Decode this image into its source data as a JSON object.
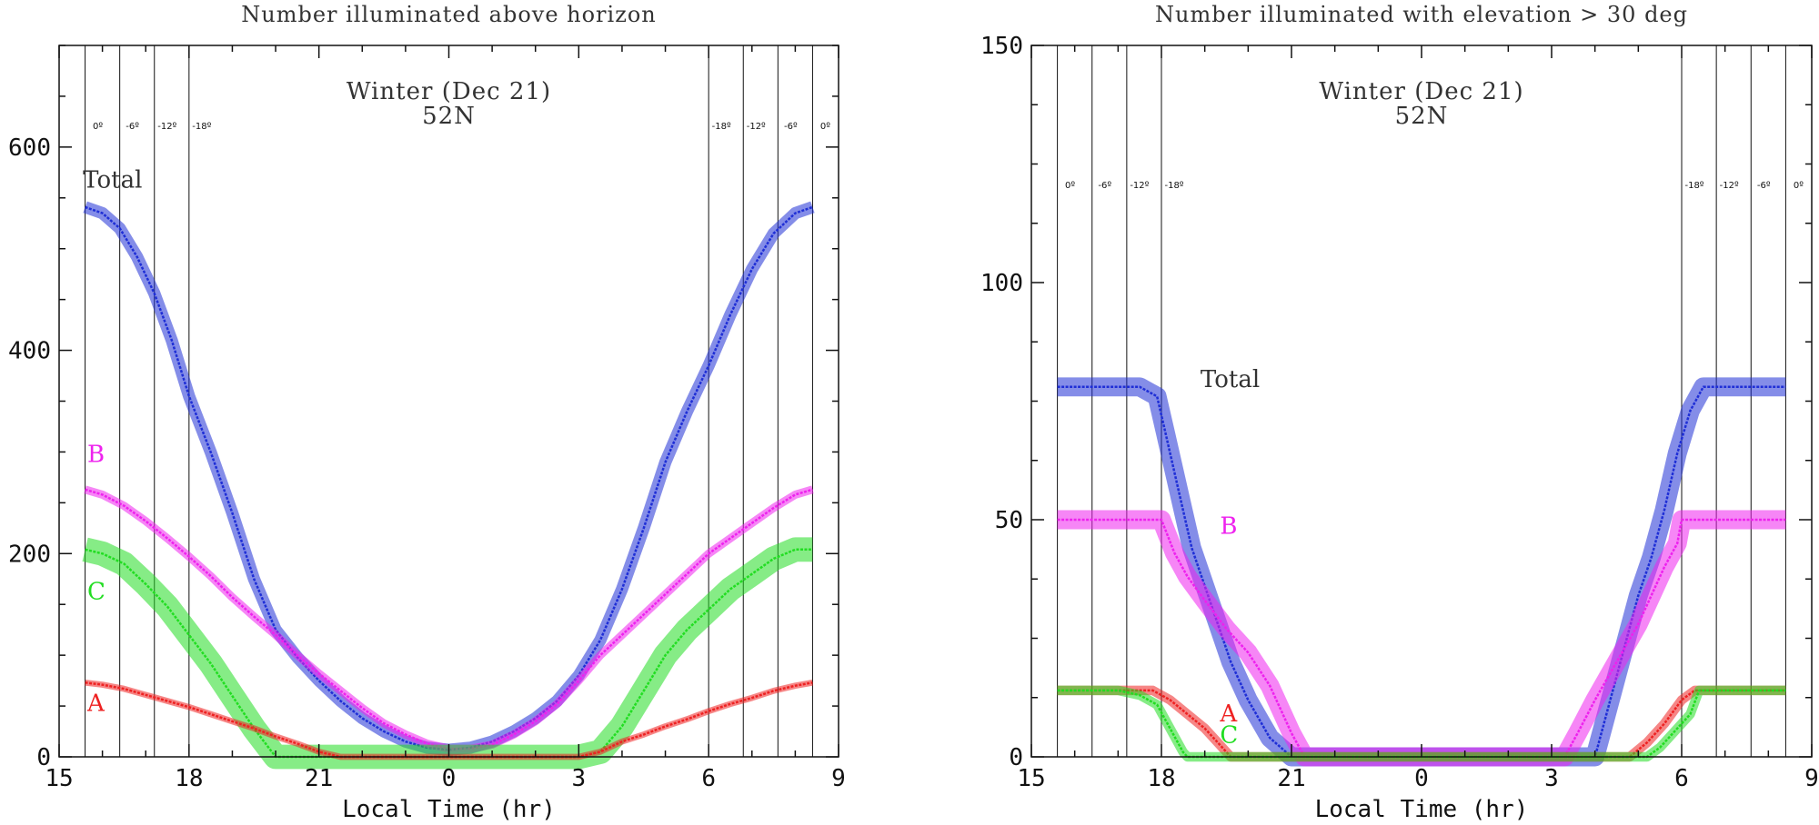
{
  "chart_data": [
    {
      "type": "line",
      "title": "Number illuminated above horizon",
      "annotation_lines": [
        "Winter (Dec 21)",
        "52N"
      ],
      "xlabel": "Local Time (hr)",
      "ylabel": "",
      "xlim": [
        15,
        33
      ],
      "ylim": [
        0,
        700
      ],
      "x_ticks": [
        15,
        18,
        21,
        24,
        27,
        30,
        33
      ],
      "x_tick_labels": [
        "15",
        "18",
        "21",
        "0",
        "3",
        "6",
        "9"
      ],
      "y_ticks": [
        0,
        200,
        400,
        600
      ],
      "y_tick_labels": [
        "0",
        "200",
        "400",
        "600"
      ],
      "twilight_lines": [
        {
          "x": 15.6,
          "label": "0º"
        },
        {
          "x": 16.4,
          "label": "-6º"
        },
        {
          "x": 17.2,
          "label": "-12º"
        },
        {
          "x": 18.0,
          "label": "-18º"
        },
        {
          "x": 30.0,
          "label": "-18º"
        },
        {
          "x": 30.8,
          "label": "-12º"
        },
        {
          "x": 31.6,
          "label": "-6º"
        },
        {
          "x": 32.4,
          "label": "0º"
        }
      ],
      "series": [
        {
          "name": "Total",
          "label_pos": [
            15.55,
            560
          ],
          "color": "#1f2fd6",
          "band": 6,
          "x": [
            15.6,
            16.0,
            16.4,
            16.8,
            17.2,
            17.6,
            18.0,
            18.5,
            19.0,
            19.5,
            20.0,
            20.5,
            21.0,
            21.5,
            22.0,
            22.5,
            23.0,
            23.5,
            24.0,
            24.5,
            25.0,
            25.5,
            26.0,
            26.5,
            27.0,
            27.5,
            28.0,
            28.5,
            29.0,
            29.5,
            30.0,
            30.5,
            31.0,
            31.5,
            32.0,
            32.4
          ],
          "y": [
            541,
            535,
            520,
            492,
            456,
            410,
            355,
            300,
            240,
            175,
            125,
            98,
            75,
            55,
            38,
            25,
            15,
            9,
            7,
            9,
            15,
            25,
            38,
            55,
            80,
            115,
            165,
            225,
            290,
            340,
            385,
            435,
            480,
            515,
            535,
            541
          ]
        },
        {
          "name": "B",
          "label_pos": [
            15.65,
            290
          ],
          "color": "#ee22ee",
          "band": 4,
          "x": [
            15.6,
            16.0,
            16.5,
            17.0,
            17.5,
            18.0,
            18.5,
            19.0,
            19.5,
            20.0,
            20.5,
            21.0,
            21.5,
            22.0,
            22.5,
            23.0,
            23.5,
            24.0,
            24.5,
            25.0,
            25.5,
            26.0,
            26.5,
            27.0,
            27.5,
            28.0,
            28.5,
            29.0,
            29.5,
            30.0,
            30.5,
            31.0,
            31.5,
            32.0,
            32.4
          ],
          "y": [
            263,
            258,
            247,
            232,
            215,
            197,
            178,
            157,
            138,
            120,
            100,
            82,
            65,
            48,
            33,
            22,
            13,
            8,
            8,
            12,
            22,
            35,
            52,
            75,
            100,
            120,
            140,
            160,
            180,
            200,
            215,
            230,
            245,
            258,
            263
          ]
        },
        {
          "name": "C",
          "label_pos": [
            15.65,
            155
          ],
          "color": "#22dd22",
          "band": 12,
          "x": [
            15.6,
            16.0,
            16.5,
            17.0,
            17.5,
            18.0,
            18.5,
            19.0,
            19.5,
            20.0,
            20.5,
            21.0,
            22.0,
            23.0,
            24.0,
            25.0,
            26.0,
            27.0,
            27.5,
            28.0,
            28.5,
            29.0,
            29.5,
            30.0,
            30.5,
            31.0,
            31.5,
            32.0,
            32.4
          ],
          "y": [
            204,
            200,
            190,
            170,
            148,
            120,
            92,
            60,
            28,
            0,
            0,
            0,
            0,
            0,
            0,
            0,
            0,
            0,
            5,
            30,
            65,
            100,
            125,
            145,
            165,
            180,
            195,
            204,
            204
          ]
        },
        {
          "name": "A",
          "label_pos": [
            15.65,
            45
          ],
          "color": "#ee2222",
          "band": 3,
          "x": [
            15.6,
            16.0,
            16.5,
            17.0,
            17.5,
            18.0,
            18.5,
            19.0,
            19.5,
            20.0,
            20.5,
            21.0,
            21.5,
            22.0,
            23.0,
            24.0,
            25.0,
            26.0,
            26.5,
            27.0,
            27.5,
            28.0,
            28.5,
            29.0,
            29.5,
            30.0,
            30.5,
            31.0,
            31.5,
            32.0,
            32.4
          ],
          "y": [
            73,
            71,
            67,
            61,
            55,
            49,
            42,
            35,
            28,
            20,
            13,
            5,
            0,
            0,
            0,
            0,
            0,
            0,
            0,
            0,
            5,
            15,
            22,
            30,
            37,
            45,
            52,
            58,
            65,
            70,
            73
          ]
        }
      ]
    },
    {
      "type": "line",
      "title": "Number illuminated with elevation > 30 deg",
      "annotation_lines": [
        "Winter (Dec 21)",
        "52N"
      ],
      "xlabel": "Local Time (hr)",
      "ylabel": "",
      "xlim": [
        15,
        33
      ],
      "ylim": [
        0,
        150
      ],
      "x_ticks": [
        15,
        18,
        21,
        24,
        27,
        30,
        33
      ],
      "x_tick_labels": [
        "15",
        "18",
        "21",
        "0",
        "3",
        "6",
        "9"
      ],
      "y_ticks": [
        0,
        50,
        100,
        150
      ],
      "y_tick_labels": [
        "0",
        "50",
        "100",
        "150"
      ],
      "twilight_lines": [
        {
          "x": 15.6,
          "label": "0º"
        },
        {
          "x": 16.4,
          "label": "-6º"
        },
        {
          "x": 17.2,
          "label": "-12º"
        },
        {
          "x": 18.0,
          "label": "-18º"
        },
        {
          "x": 30.0,
          "label": "-18º"
        },
        {
          "x": 30.8,
          "label": "-12º"
        },
        {
          "x": 31.6,
          "label": "-6º"
        },
        {
          "x": 32.4,
          "label": "0º"
        }
      ],
      "series": [
        {
          "name": "Total",
          "label_pos": [
            18.9,
            78
          ],
          "color": "#1f2fd6",
          "band": 2,
          "x": [
            15.6,
            16.5,
            17.5,
            17.9,
            18.1,
            18.3,
            18.5,
            18.7,
            19.0,
            19.3,
            19.6,
            20.0,
            20.5,
            21.0,
            22.0,
            24.0,
            26.0,
            28.0,
            29.0,
            29.3,
            29.6,
            29.9,
            30.2,
            30.5,
            31.0,
            32.0,
            32.4
          ],
          "y": [
            78,
            78,
            78,
            76,
            68,
            60,
            52,
            44,
            36,
            28,
            20,
            12,
            4,
            0,
            0,
            0,
            0,
            0,
            34,
            42,
            52,
            64,
            73,
            78,
            78,
            78,
            78
          ]
        },
        {
          "name": "B",
          "label_pos": [
            19.35,
            47
          ],
          "color": "#ee22ee",
          "band": 2,
          "x": [
            15.6,
            16.5,
            17.5,
            18.0,
            18.3,
            18.6,
            19.0,
            19.5,
            20.0,
            20.5,
            21.0,
            21.3,
            22.0,
            24.0,
            26.0,
            27.3,
            27.6,
            28.0,
            28.5,
            29.0,
            29.3,
            29.6,
            29.9,
            30.0,
            31.0,
            32.0,
            32.4
          ],
          "y": [
            50,
            50,
            50,
            50,
            43,
            38,
            33,
            27,
            22,
            15,
            5,
            0,
            0,
            0,
            0,
            0,
            5,
            12,
            20,
            28,
            34,
            40,
            45,
            50,
            50,
            50,
            50
          ]
        },
        {
          "name": "A",
          "label_pos": [
            19.35,
            7.5
          ],
          "color": "#ee2222",
          "band": 1,
          "x": [
            15.6,
            17.0,
            17.8,
            18.2,
            18.6,
            19.0,
            19.3,
            19.6,
            20.0,
            22.0,
            25.0,
            28.0,
            28.8,
            29.2,
            29.6,
            30.0,
            30.3,
            30.8,
            32.0,
            32.4
          ],
          "y": [
            14,
            14,
            14,
            12,
            9,
            6,
            3,
            0,
            0,
            0,
            0,
            0,
            0,
            3,
            7,
            12,
            14,
            14,
            14,
            14
          ]
        },
        {
          "name": "C",
          "label_pos": [
            19.35,
            3
          ],
          "color": "#22dd22",
          "band": 1,
          "x": [
            15.6,
            17.0,
            17.5,
            17.9,
            18.2,
            18.5,
            18.6,
            19.0,
            22.0,
            25.0,
            28.0,
            29.2,
            29.5,
            29.9,
            30.2,
            30.4,
            30.8,
            32.0,
            32.4
          ],
          "y": [
            14,
            14,
            13,
            11,
            6,
            1,
            0,
            0,
            0,
            0,
            0,
            0,
            2,
            6,
            9,
            14,
            14,
            14,
            14
          ]
        }
      ]
    }
  ]
}
